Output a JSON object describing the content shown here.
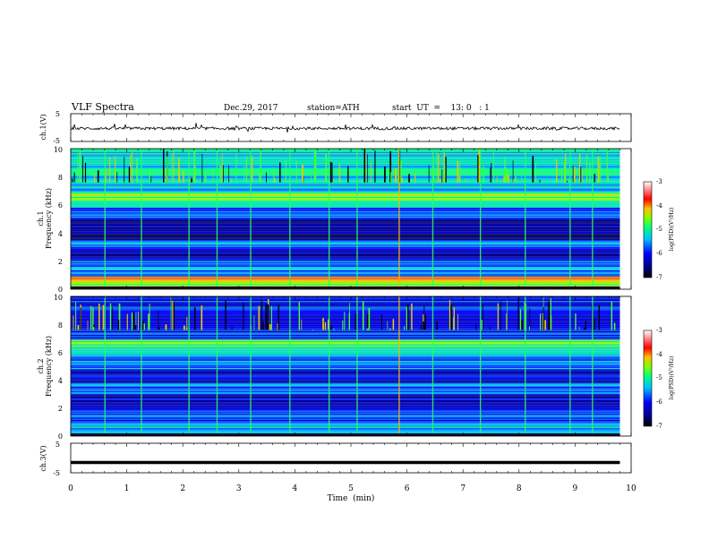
{
  "header": {
    "title": "VLF  Spectra",
    "date": "Dec.29, 2017",
    "station": "station=ATH",
    "start": "start  UT  =    13: 0   : 1"
  },
  "colors": {
    "background": "#ffffff",
    "axis": "#000000",
    "colormap": [
      "#000000",
      "#00007f",
      "#0000ff",
      "#00bfff",
      "#00ff7f",
      "#7fff00",
      "#ffbf00",
      "#ff0000",
      "#ffffff"
    ]
  },
  "chart_data": [
    {
      "id": "ch1-waveform",
      "type": "line",
      "ylabel": "ch.1(V)",
      "ylim": [
        -5,
        5
      ],
      "yticks": [
        "5",
        "-5"
      ],
      "xlim": [
        0,
        10
      ],
      "series": [
        {
          "values_summary": "noisy trace around -0.3 V with small spikes"
        }
      ]
    },
    {
      "id": "ch1-spectrogram",
      "type": "heatmap",
      "ylabel": "ch.1",
      "ylabel2": "Frequency  (kHz)",
      "ylim": [
        0,
        10
      ],
      "yticks": [
        "0",
        "2",
        "4",
        "6",
        "8",
        "10"
      ],
      "xlim": [
        0,
        10
      ],
      "data_extent_min": 9.8,
      "colorbar": {
        "label": "log(PSD)(V²/Hz)",
        "range": [
          -7,
          -3
        ],
        "ticks": [
          "-3",
          "-4",
          "-5",
          "-6",
          "-7"
        ]
      },
      "bands": [
        {
          "f_low": 0.0,
          "f_high": 0.2,
          "level": -7.0
        },
        {
          "f_low": 0.2,
          "f_high": 0.6,
          "level": -4.6
        },
        {
          "f_low": 0.6,
          "f_high": 0.9,
          "level": -4.2
        },
        {
          "f_low": 0.9,
          "f_high": 2.0,
          "level": -5.6
        },
        {
          "f_low": 2.0,
          "f_high": 3.0,
          "level": -6.3
        },
        {
          "f_low": 3.0,
          "f_high": 3.5,
          "level": -5.6
        },
        {
          "f_low": 3.5,
          "f_high": 5.0,
          "level": -6.4
        },
        {
          "f_low": 5.0,
          "f_high": 5.8,
          "level": -5.8
        },
        {
          "f_low": 5.8,
          "f_high": 6.3,
          "level": -5.1
        },
        {
          "f_low": 6.3,
          "f_high": 6.9,
          "level": -4.6
        },
        {
          "f_low": 6.9,
          "f_high": 7.6,
          "level": -5.5
        },
        {
          "f_low": 7.6,
          "f_high": 10.0,
          "level": -5.2
        }
      ],
      "sferic_bursts_min": [
        0.6,
        1.25,
        2.1,
        2.6,
        3.2,
        3.9,
        4.6,
        5.1,
        5.85,
        6.45,
        7.3,
        8.1,
        8.9,
        9.3
      ]
    },
    {
      "id": "ch2-spectrogram",
      "type": "heatmap",
      "ylabel": "ch.2",
      "ylabel2": "Frequency  (kHz)",
      "ylim": [
        0,
        10
      ],
      "yticks": [
        "0",
        "2",
        "4",
        "6",
        "8",
        "10"
      ],
      "xlim": [
        0,
        10
      ],
      "data_extent_min": 9.8,
      "colorbar": {
        "label": "log(PSD)(V²/Hz)",
        "range": [
          -7,
          -3
        ],
        "ticks": [
          "-3",
          "-4",
          "-5",
          "-6",
          "-7"
        ]
      },
      "bands": [
        {
          "f_low": 0.0,
          "f_high": 0.2,
          "level": -7.0
        },
        {
          "f_low": 0.2,
          "f_high": 1.0,
          "level": -5.4
        },
        {
          "f_low": 1.0,
          "f_high": 2.0,
          "level": -5.8
        },
        {
          "f_low": 2.0,
          "f_high": 3.0,
          "level": -6.3
        },
        {
          "f_low": 3.0,
          "f_high": 3.8,
          "level": -5.7
        },
        {
          "f_low": 3.8,
          "f_high": 4.8,
          "level": -6.2
        },
        {
          "f_low": 4.8,
          "f_high": 6.2,
          "level": -5.4
        },
        {
          "f_low": 6.2,
          "f_high": 6.9,
          "level": -4.8
        },
        {
          "f_low": 6.9,
          "f_high": 10.0,
          "level": -6.0
        }
      ],
      "sferic_bursts_min": [
        0.6,
        1.25,
        2.1,
        2.6,
        3.2,
        3.9,
        4.6,
        5.1,
        5.85,
        6.45,
        7.3,
        8.1,
        8.9,
        9.3
      ]
    },
    {
      "id": "ch3-waveform",
      "type": "line",
      "ylabel": "ch.3(V)",
      "ylim": [
        -5,
        5
      ],
      "yticks": [
        "5",
        "-5"
      ],
      "xlim": [
        0,
        10
      ],
      "series": [
        {
          "values_summary": "flat thick trace at about -1.5 V"
        }
      ],
      "level": -1.5
    }
  ],
  "xaxis": {
    "label": "Time  (min)",
    "ticks": [
      "0",
      "1",
      "2",
      "3",
      "4",
      "5",
      "6",
      "7",
      "8",
      "9",
      "10"
    ],
    "range": [
      0,
      10
    ]
  }
}
